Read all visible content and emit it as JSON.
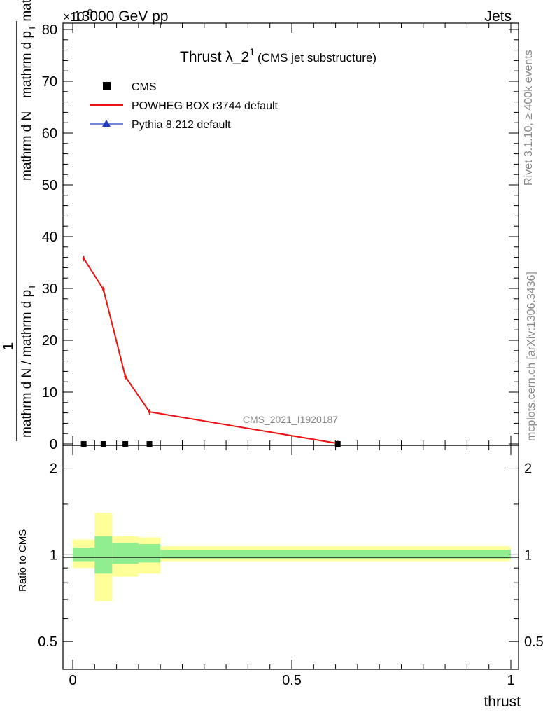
{
  "header": {
    "left": "13000 GeV pp",
    "right": "Jets",
    "exponent": "×10",
    "exponent_power": "-9"
  },
  "side_labels": {
    "rivet": "Rivet 3.1.10, ≥ 400k events",
    "mcplots": "mcplots.cern.ch [arXiv:1306.3436]"
  },
  "watermark": "CMS_2021_I1920187",
  "colors": {
    "cms": "#000000",
    "powheg": "#ee1111",
    "pythia": "#1f3fbf",
    "band_stat": "#90ee90",
    "band_total": "#ffff99"
  },
  "chart_data": [
    {
      "type": "line",
      "title": "Thrust λ_2",
      "title_sup": "1",
      "title_note": "(CMS jet substructure)",
      "ylabel_num": "1",
      "ylabel_mid": "mathrm d N / mathrm d p",
      "ylabel_mid_sub": "T",
      "ylabel_den": "mathrm d",
      "ylabel_den2": "N",
      "ylabel_den_extra": "mathrm d p",
      "ylabel_den_extra_sub": "T",
      "ylabel_den_tail": "mathrm d lambda",
      "xlim": [
        0,
        1
      ],
      "ylim": [
        0,
        80
      ],
      "yticks": [
        "0",
        "10",
        "20",
        "30",
        "40",
        "50",
        "60",
        "70",
        "80"
      ],
      "legend": [
        "CMS",
        "POWHEG BOX r3744 default",
        "Pythia 8.212 default"
      ],
      "legend_position": "top-left",
      "series": [
        {
          "name": "CMS",
          "x": [
            0.025,
            0.07,
            0.12,
            0.175,
            0.605
          ],
          "y": [
            0,
            0,
            0,
            0,
            0
          ]
        },
        {
          "name": "POWHEG BOX r3744 default",
          "x": [
            0.025,
            0.07,
            0.12,
            0.175,
            0.605
          ],
          "y": [
            35.8,
            29.8,
            13.0,
            6.2,
            0.1
          ]
        }
      ]
    },
    {
      "type": "area",
      "ylabel": "Ratio to CMS",
      "xlabel": "thrust",
      "xlim": [
        0,
        1
      ],
      "ylim_log": [
        0.4,
        2.4
      ],
      "yticks": [
        "0.5",
        "1",
        "2"
      ],
      "xticks": [
        "0",
        "0.5",
        "1"
      ],
      "bins": [
        {
          "lo": 0.0,
          "hi": 0.05,
          "stat": [
            0.95,
            1.06
          ],
          "total": [
            0.9,
            1.13
          ]
        },
        {
          "lo": 0.05,
          "hi": 0.09,
          "stat": [
            0.86,
            1.16
          ],
          "total": [
            0.69,
            1.4
          ]
        },
        {
          "lo": 0.09,
          "hi": 0.15,
          "stat": [
            0.93,
            1.1
          ],
          "total": [
            0.84,
            1.16
          ]
        },
        {
          "lo": 0.15,
          "hi": 0.2,
          "stat": [
            0.94,
            1.09
          ],
          "total": [
            0.86,
            1.15
          ]
        },
        {
          "lo": 0.2,
          "hi": 1.0,
          "stat": [
            0.97,
            1.04
          ],
          "total": [
            0.95,
            1.07
          ]
        }
      ]
    }
  ]
}
